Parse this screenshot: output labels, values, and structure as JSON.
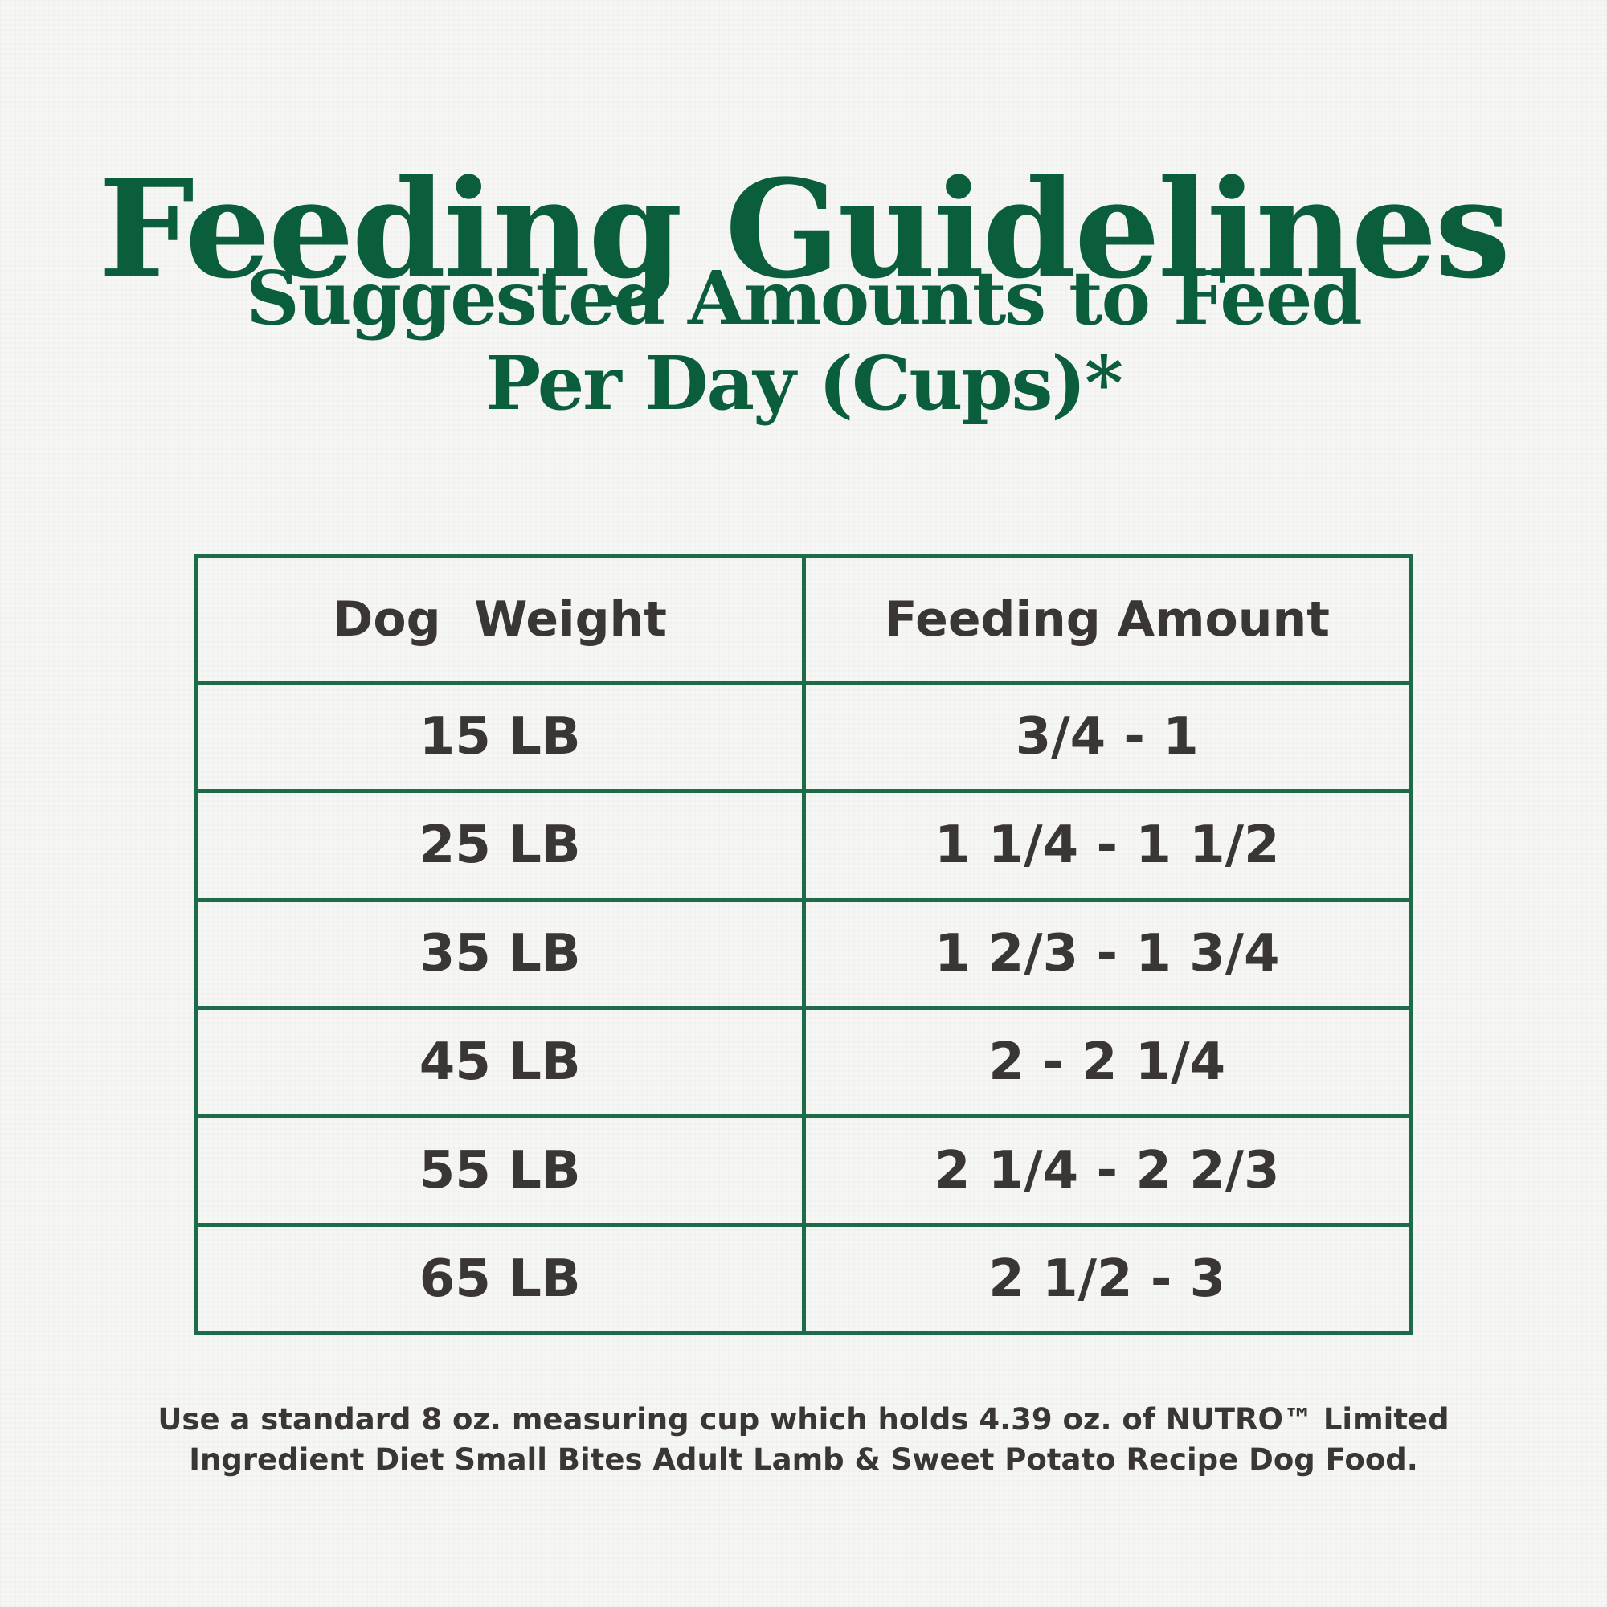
{
  "header": {
    "title": "Feeding Guidelines",
    "subtitle_line1": "Suggested Amounts to Feed",
    "subtitle_line2": "Per Day (Cups)*"
  },
  "table": {
    "columns": [
      "Dog  Weight",
      "Feeding Amount"
    ],
    "rows": [
      [
        "15 LB",
        "3/4 - 1"
      ],
      [
        "25 LB",
        "1 1/4 - 1 1/2"
      ],
      [
        "35 LB",
        "1 2/3 - 1 3/4"
      ],
      [
        "45 LB",
        "2 - 2 1/4"
      ],
      [
        "55 LB",
        "2 1/4 - 2 2/3"
      ],
      [
        "65 LB",
        "2 1/2 - 3"
      ]
    ]
  },
  "footnote": {
    "line1": "Use a standard 8 oz. measuring cup which holds 4.39 oz. of NUTRO™ Limited",
    "line2": "Ingredient Diet Small Bites Adult Lamb & Sweet Potato Recipe Dog Food."
  },
  "colors": {
    "brand_green": "#0b5e3c",
    "table_border": "#1d6b48",
    "text_dark": "#3a3634",
    "background": "#f6f6f4"
  }
}
